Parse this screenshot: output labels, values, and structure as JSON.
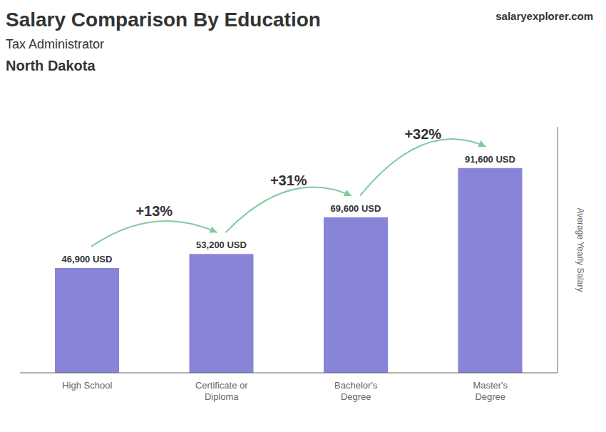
{
  "chart_data": {
    "type": "bar",
    "title": "Salary Comparison By Education",
    "subtitle": [
      "Tax Administrator",
      "North Dakota"
    ],
    "ylabel": "Average Yearly Salary",
    "categories": [
      "High School",
      "Certificate or\nDiploma",
      "Bachelor's\nDegree",
      "Master's\nDegree"
    ],
    "values": [
      46900,
      53200,
      69600,
      91600
    ],
    "value_labels": [
      "46,900 USD",
      "53,200 USD",
      "69,600 USD",
      "91,600 USD"
    ],
    "data_labels": true,
    "annotations": [
      "+13%",
      "+31%",
      "+32%",
      "salaryexplorer.com"
    ],
    "ylim": [
      0,
      110000
    ],
    "tick_labels": "x",
    "grid": false
  }
}
